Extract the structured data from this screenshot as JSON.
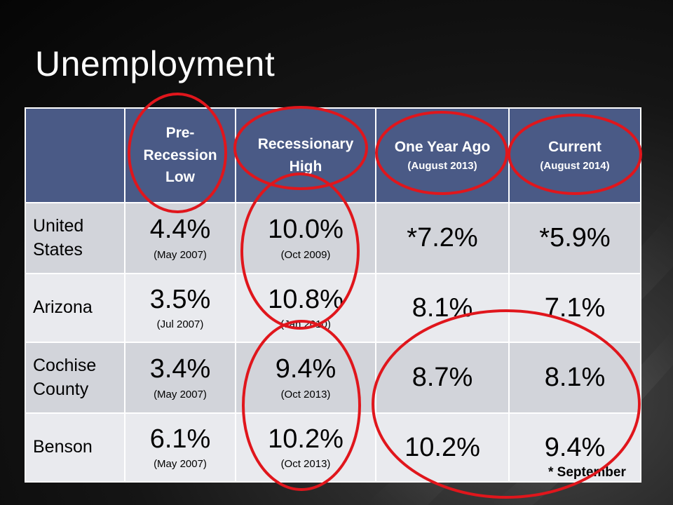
{
  "title": "Unemployment",
  "columns": [
    {
      "label": "",
      "sub": ""
    },
    {
      "label": "Pre-Recession Low",
      "sub": ""
    },
    {
      "label": "Recessionary High",
      "sub": ""
    },
    {
      "label": "One Year Ago",
      "sub": "(August 2013)"
    },
    {
      "label": "Current",
      "sub": "(August 2014)"
    }
  ],
  "rows": [
    {
      "region": "United States",
      "pre_low": {
        "value": "4.4%",
        "date": "(May 2007)"
      },
      "rec_high": {
        "value": "10.0%",
        "date": "(Oct 2009)"
      },
      "year_ago": "*7.2%",
      "current": "*5.9%"
    },
    {
      "region": "Arizona",
      "pre_low": {
        "value": "3.5%",
        "date": "(Jul 2007)"
      },
      "rec_high": {
        "value": "10.8%",
        "date": "(Jan 2010)"
      },
      "year_ago": "8.1%",
      "current": "7.1%"
    },
    {
      "region": "Cochise County",
      "pre_low": {
        "value": "3.4%",
        "date": "(May 2007)"
      },
      "rec_high": {
        "value": "9.4%",
        "date": "(Oct 2013)"
      },
      "year_ago": "8.7%",
      "current": "8.1%"
    },
    {
      "region": "Benson",
      "pre_low": {
        "value": "6.1%",
        "date": "(May 2007)"
      },
      "rec_high": {
        "value": "10.2%",
        "date": "(Oct 2013)"
      },
      "year_ago": "10.2%",
      "current": "9.4%"
    }
  ],
  "footnote": "* September",
  "colors": {
    "header_bg": "#4a5a86",
    "row_dark": "#d2d4da",
    "row_light": "#e9eaee",
    "annotation": "#e0161c"
  }
}
